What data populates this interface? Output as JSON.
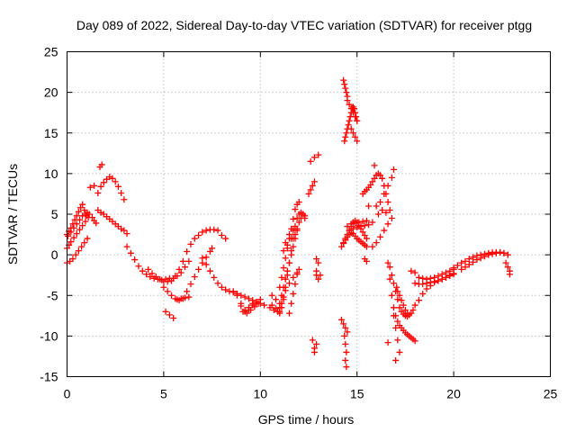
{
  "chart_data": {
    "type": "scatter",
    "title": "Day 089 of 2022, Sidereal Day-to-day VTEC variation (SDTVAR) for receiver ptgg",
    "xlabel": "GPS time / hours",
    "ylabel": "SDTVAR / TECUs",
    "xlim": [
      0,
      25
    ],
    "ylim": [
      -15,
      25
    ],
    "x_ticks": [
      "0",
      "5",
      "10",
      "15",
      "20",
      "25"
    ],
    "y_ticks": [
      "-15",
      "-10",
      "-5",
      "0",
      "5",
      "10",
      "15",
      "20",
      "25"
    ],
    "grid": true,
    "marker": "+",
    "color": "#ff0000",
    "series": [
      {
        "name": "SDTVAR",
        "x": [
          0.0,
          0.1,
          0.2,
          0.3,
          0.4,
          0.5,
          0.6,
          0.7,
          0.8,
          0.9,
          1.0,
          0.0,
          0.15,
          0.3,
          0.45,
          0.6,
          0.75,
          0.9,
          1.05,
          0.0,
          0.1,
          0.2,
          0.35,
          0.5,
          0.65,
          0.8,
          0.95,
          1.1,
          0.05,
          0.2,
          0.35,
          0.5,
          0.65,
          0.8,
          0.95,
          1.05,
          1.15,
          1.3,
          1.4,
          1.5,
          1.2,
          1.4,
          1.6,
          1.75,
          1.9,
          2.05,
          2.2,
          2.35,
          2.5,
          2.65,
          2.8,
          2.95,
          1.6,
          1.75,
          1.9,
          2.05,
          2.2,
          2.35,
          2.5,
          2.65,
          2.8,
          2.95,
          3.1,
          1.7,
          1.8,
          3.1,
          3.3,
          3.5,
          3.7,
          3.9,
          4.1,
          4.3,
          4.5,
          4.7,
          4.9,
          5.1,
          5.3,
          5.5,
          5.7,
          5.9,
          6.1,
          6.3,
          4.2,
          4.4,
          4.6,
          4.8,
          5.0,
          5.2,
          5.4,
          5.6,
          5.8,
          6.0,
          6.2,
          6.4,
          6.6,
          6.8,
          7.0,
          7.2,
          7.4,
          7.6,
          7.8,
          8.0,
          8.2,
          5.0,
          5.1,
          5.3,
          5.5,
          5.7,
          5.9,
          6.1,
          6.3,
          5.2,
          5.4,
          5.6,
          5.8,
          6.0,
          6.2,
          6.4,
          6.6,
          6.8,
          7.0,
          7.2,
          7.4,
          7.5,
          7.0,
          7.2,
          7.4,
          7.6,
          7.8,
          8.0,
          8.2,
          8.4,
          8.6,
          8.8,
          9.0,
          9.2,
          9.4,
          9.6,
          9.8,
          10.0,
          10.2,
          8.6,
          8.8,
          9.0,
          9.2,
          9.4,
          9.6,
          9.8,
          10.0,
          9.0,
          9.2,
          9.4,
          9.6,
          9.8,
          9.1,
          9.3,
          9.5,
          9.7,
          9.9,
          10.5,
          10.7,
          10.9,
          11.0,
          10.6,
          10.8,
          11.0,
          10.6,
          10.8,
          11.0,
          11.1,
          11.2,
          11.3,
          11.4,
          11.5,
          11.6,
          11.7,
          11.8,
          11.9,
          12.0,
          12.1,
          12.2,
          12.3,
          11.0,
          11.1,
          11.2,
          11.3,
          11.4,
          11.5,
          11.6,
          11.7,
          11.8,
          11.9,
          12.0,
          11.1,
          11.2,
          11.3,
          11.4,
          11.5,
          11.6,
          11.7,
          11.8,
          11.9,
          11.0,
          11.1,
          11.2,
          11.3,
          11.5,
          11.7,
          11.9,
          12.0,
          11.2,
          11.4,
          11.6,
          11.8,
          11.5,
          11.6,
          11.7,
          11.8,
          11.9,
          11.3,
          11.5,
          11.7,
          11.9,
          12.0,
          12.1,
          12.2,
          12.3,
          12.5,
          12.6,
          12.7,
          12.8,
          12.6,
          12.8,
          13.0,
          12.7,
          12.9,
          12.8,
          12.8,
          12.9,
          13.0,
          12.9,
          13.0,
          12.9,
          13.1,
          14.3,
          14.35,
          14.4,
          14.45,
          14.5,
          14.35,
          14.4,
          14.45,
          14.5,
          14.55,
          14.6,
          14.65,
          14.7,
          14.75,
          14.8,
          14.85,
          14.9,
          14.95,
          15.0,
          14.5,
          14.6,
          14.7,
          14.8,
          14.9,
          15.0,
          14.7,
          14.8,
          14.9,
          15.0,
          14.3,
          14.4,
          14.5,
          14.6,
          14.7,
          14.8,
          14.9,
          15.0,
          15.1,
          15.2,
          15.3,
          15.4,
          15.5,
          14.2,
          14.3,
          14.4,
          14.5,
          14.6,
          14.7,
          14.8,
          14.9,
          15.0,
          15.1,
          15.2,
          15.3,
          15.4,
          15.5,
          14.5,
          14.7,
          14.9,
          15.1,
          15.3,
          15.5,
          14.6,
          14.8,
          15.0,
          15.2,
          15.4,
          15.6,
          14.2,
          14.3,
          14.4,
          14.5,
          14.35,
          14.4,
          14.45,
          14.4,
          14.45,
          15.4,
          15.5,
          15.3,
          15.4,
          15.5,
          15.6,
          15.7,
          15.8,
          15.9,
          16.0,
          16.1,
          16.2,
          16.3,
          16.4,
          16.5,
          16.6,
          16.7,
          15.8,
          16.0,
          16.2,
          16.4,
          16.6,
          16.8,
          16.9,
          15.9,
          16.1,
          16.3,
          15.6,
          15.8,
          16.0,
          16.2,
          16.4,
          16.6,
          16.8,
          16.5,
          16.6,
          16.7,
          16.8,
          16.9,
          17.0,
          17.1,
          17.2,
          17.3,
          17.4,
          17.5,
          17.6,
          17.7,
          17.8,
          17.9,
          18.0,
          16.6,
          16.7,
          16.8,
          16.9,
          17.0,
          17.1,
          17.2,
          17.3,
          17.4,
          17.5,
          17.6,
          16.9,
          17.0,
          17.1,
          17.2,
          17.0,
          17.05,
          17.1,
          17.2,
          17.3,
          17.4,
          17.5,
          17.6,
          17.7,
          17.8,
          17.9,
          18.0,
          18.2,
          18.4,
          18.6,
          18.8,
          19.0,
          19.2,
          19.4,
          19.6,
          19.8,
          20.0,
          17.8,
          18.0,
          18.2,
          18.4,
          18.6,
          18.8,
          19.0,
          19.2,
          19.4,
          19.6,
          19.8,
          20.0,
          18.0,
          18.2,
          18.4,
          18.6,
          18.8,
          19.0,
          19.2,
          19.4,
          19.6,
          19.8,
          20.0,
          20.0,
          20.2,
          20.4,
          20.6,
          20.8,
          21.0,
          21.2,
          21.4,
          21.6,
          21.8,
          22.0,
          22.2,
          22.4,
          22.6,
          22.8,
          20.4,
          20.6,
          20.8,
          21.0,
          21.2,
          21.4,
          21.6,
          21.8,
          22.0,
          22.2,
          22.4,
          22.6,
          22.8,
          22.7,
          22.8,
          22.9,
          22.9
        ],
        "y": [
          2.5,
          2.9,
          3.3,
          3.8,
          4.3,
          4.8,
          5.3,
          5.8,
          6.2,
          5.5,
          4.8,
          -1.0,
          -0.8,
          -0.5,
          0.0,
          0.5,
          1.0,
          1.5,
          2.0,
          0.8,
          1.2,
          1.6,
          2.1,
          2.6,
          3.1,
          3.6,
          4.1,
          4.6,
          2.3,
          2.8,
          3.3,
          3.8,
          4.3,
          4.8,
          5.0,
          5.2,
          5.0,
          4.6,
          4.2,
          3.9,
          8.3,
          8.5,
          7.6,
          8.4,
          8.9,
          9.3,
          9.6,
          9.4,
          9.0,
          8.4,
          7.6,
          6.8,
          5.5,
          5.2,
          5.0,
          4.7,
          4.4,
          4.1,
          3.8,
          3.5,
          3.2,
          3.0,
          2.6,
          10.8,
          11.1,
          1.0,
          0.2,
          -0.6,
          -1.4,
          -2.0,
          -2.4,
          -2.7,
          -2.9,
          -3.0,
          -3.1,
          -3.0,
          -2.9,
          -2.9,
          -2.6,
          -2.2,
          -1.5,
          -0.8,
          -1.8,
          -2.3,
          -2.7,
          -3.0,
          -3.3,
          -3.3,
          -3.2,
          -2.6,
          -1.8,
          -0.8,
          0.4,
          1.3,
          2.0,
          2.4,
          2.8,
          3.0,
          3.1,
          3.1,
          3.0,
          2.4,
          2.0,
          -4.0,
          -7.0,
          -7.4,
          -7.8,
          -5.5,
          -5.4,
          -5.3,
          -5.2,
          -4.5,
          -5.0,
          -5.4,
          -5.6,
          -5.4,
          -4.5,
          -3.6,
          -2.7,
          -1.8,
          -1.0,
          -0.3,
          0.4,
          0.8,
          -0.4,
          -1.2,
          -2.0,
          -2.8,
          -3.5,
          -4.0,
          -4.3,
          -4.5,
          -4.6,
          -4.8,
          -5.0,
          -5.2,
          -5.4,
          -5.6,
          -5.8,
          -6.0,
          -6.2,
          -4.5,
          -5.0,
          -6.0,
          -7.0,
          -6.8,
          -6.0,
          -5.8,
          -5.5,
          -6.3,
          -6.8,
          -6.5,
          -6.2,
          -6.0,
          -7.0,
          -7.2,
          -6.8,
          -6.4,
          -6.0,
          -6.5,
          -6.8,
          -7.0,
          -7.2,
          -5.0,
          -5.5,
          -6.0,
          -6.2,
          -6.6,
          -7.0,
          -6.5,
          -5.5,
          -4.0,
          -2.5,
          -1.0,
          0.5,
          2.0,
          3.5,
          4.5,
          5.0,
          5.2,
          5.0,
          4.5,
          -4.0,
          -2.8,
          -1.6,
          -0.4,
          0.8,
          2.0,
          3.2,
          4.4,
          5.6,
          6.2,
          6.5,
          -5.0,
          -4.0,
          -3.0,
          -2.0,
          -1.0,
          0.0,
          1.0,
          2.0,
          3.0,
          -6.5,
          -6.0,
          -5.2,
          -4.4,
          -3.5,
          -2.8,
          -2.2,
          -1.8,
          0.5,
          1.2,
          2.0,
          2.5,
          -7.2,
          -6.0,
          -4.8,
          -3.6,
          -2.4,
          1.5,
          2.5,
          3.0,
          3.2,
          4.0,
          4.5,
          5.0,
          4.8,
          7.5,
          8.0,
          8.5,
          9.0,
          11.5,
          12.0,
          12.3,
          -10.5,
          -11.0,
          -11.5,
          -12.0,
          -0.5,
          -1.0,
          -2.5,
          -3.0,
          -2.0,
          -2.5,
          21.5,
          21.0,
          20.5,
          20.0,
          19.5,
          14.0,
          14.5,
          15.0,
          15.5,
          16.0,
          16.5,
          17.0,
          17.5,
          18.0,
          18.2,
          18.0,
          17.5,
          17.0,
          16.5,
          19.0,
          18.5,
          18.0,
          17.5,
          17.0,
          16.5,
          15.5,
          15.0,
          14.5,
          14.0,
          1.5,
          2.0,
          2.5,
          3.0,
          3.5,
          4.0,
          4.2,
          4.0,
          3.6,
          3.2,
          2.8,
          2.4,
          2.0,
          1.0,
          1.4,
          1.8,
          2.2,
          2.5,
          2.7,
          2.6,
          2.3,
          2.0,
          1.8,
          1.6,
          1.4,
          1.2,
          1.0,
          3.5,
          3.8,
          3.9,
          4.0,
          4.1,
          4.2,
          3.0,
          3.2,
          3.4,
          3.5,
          3.6,
          3.7,
          -8.0,
          -8.5,
          -9.0,
          -9.5,
          -10.0,
          -11.0,
          -12.0,
          -13.0,
          -13.8,
          -0.5,
          -0.8,
          7.5,
          7.8,
          8.0,
          8.3,
          8.6,
          9.0,
          9.4,
          9.8,
          10.0,
          9.8,
          9.4,
          8.5,
          7.5,
          6.5,
          5.5,
          4.0,
          6.0,
          6.5,
          7.5,
          8.5,
          9.5,
          10.5,
          11.0,
          5.0,
          5.5,
          6.0,
          1.0,
          1.5,
          2.2,
          3.0,
          3.8,
          4.5,
          5.2,
          -1.0,
          -3.0,
          -5.0,
          -6.5,
          -7.5,
          -8.2,
          -8.7,
          -9.0,
          -9.3,
          -9.6,
          -9.8,
          -10.0,
          -10.2,
          -10.4,
          -10.6,
          -10.8,
          -1.5,
          -2.5,
          -3.5,
          -4.5,
          -5.5,
          -6.5,
          -7.0,
          -7.3,
          -7.5,
          -7.6,
          -7.5,
          -9.0,
          -10.5,
          -12.0,
          -13.0,
          -4.0,
          -4.5,
          -5.0,
          -5.6,
          -6.2,
          -6.8,
          -7.2,
          -7.4,
          -7.2,
          -6.8,
          -6.2,
          -5.6,
          -4.8,
          -4.2,
          -3.8,
          -3.4,
          -3.2,
          -3.0,
          -2.8,
          -2.5,
          -2.3,
          -2.0,
          -3.5,
          -3.6,
          -3.6,
          -3.5,
          -3.4,
          -3.3,
          -3.2,
          -3.0,
          -2.8,
          -2.6,
          -2.4,
          -2.2,
          -2.8,
          -2.9,
          -3.0,
          -2.9,
          -2.8,
          -2.6,
          -2.4,
          -2.2,
          -2.0,
          -1.8,
          -1.6,
          -1.3,
          -1.0,
          -0.8,
          -0.5,
          -0.3,
          -0.1,
          0.0,
          0.1,
          0.2,
          0.3,
          0.3,
          0.3,
          0.2,
          0.0,
          -1.8,
          -1.5,
          -1.2,
          -0.9,
          -0.6,
          -0.4,
          -0.2,
          0.0,
          0.1,
          0.2,
          0.3,
          0.2,
          0.0,
          -1.0,
          -1.5,
          -2.0,
          -2.4
        ]
      }
    ]
  }
}
